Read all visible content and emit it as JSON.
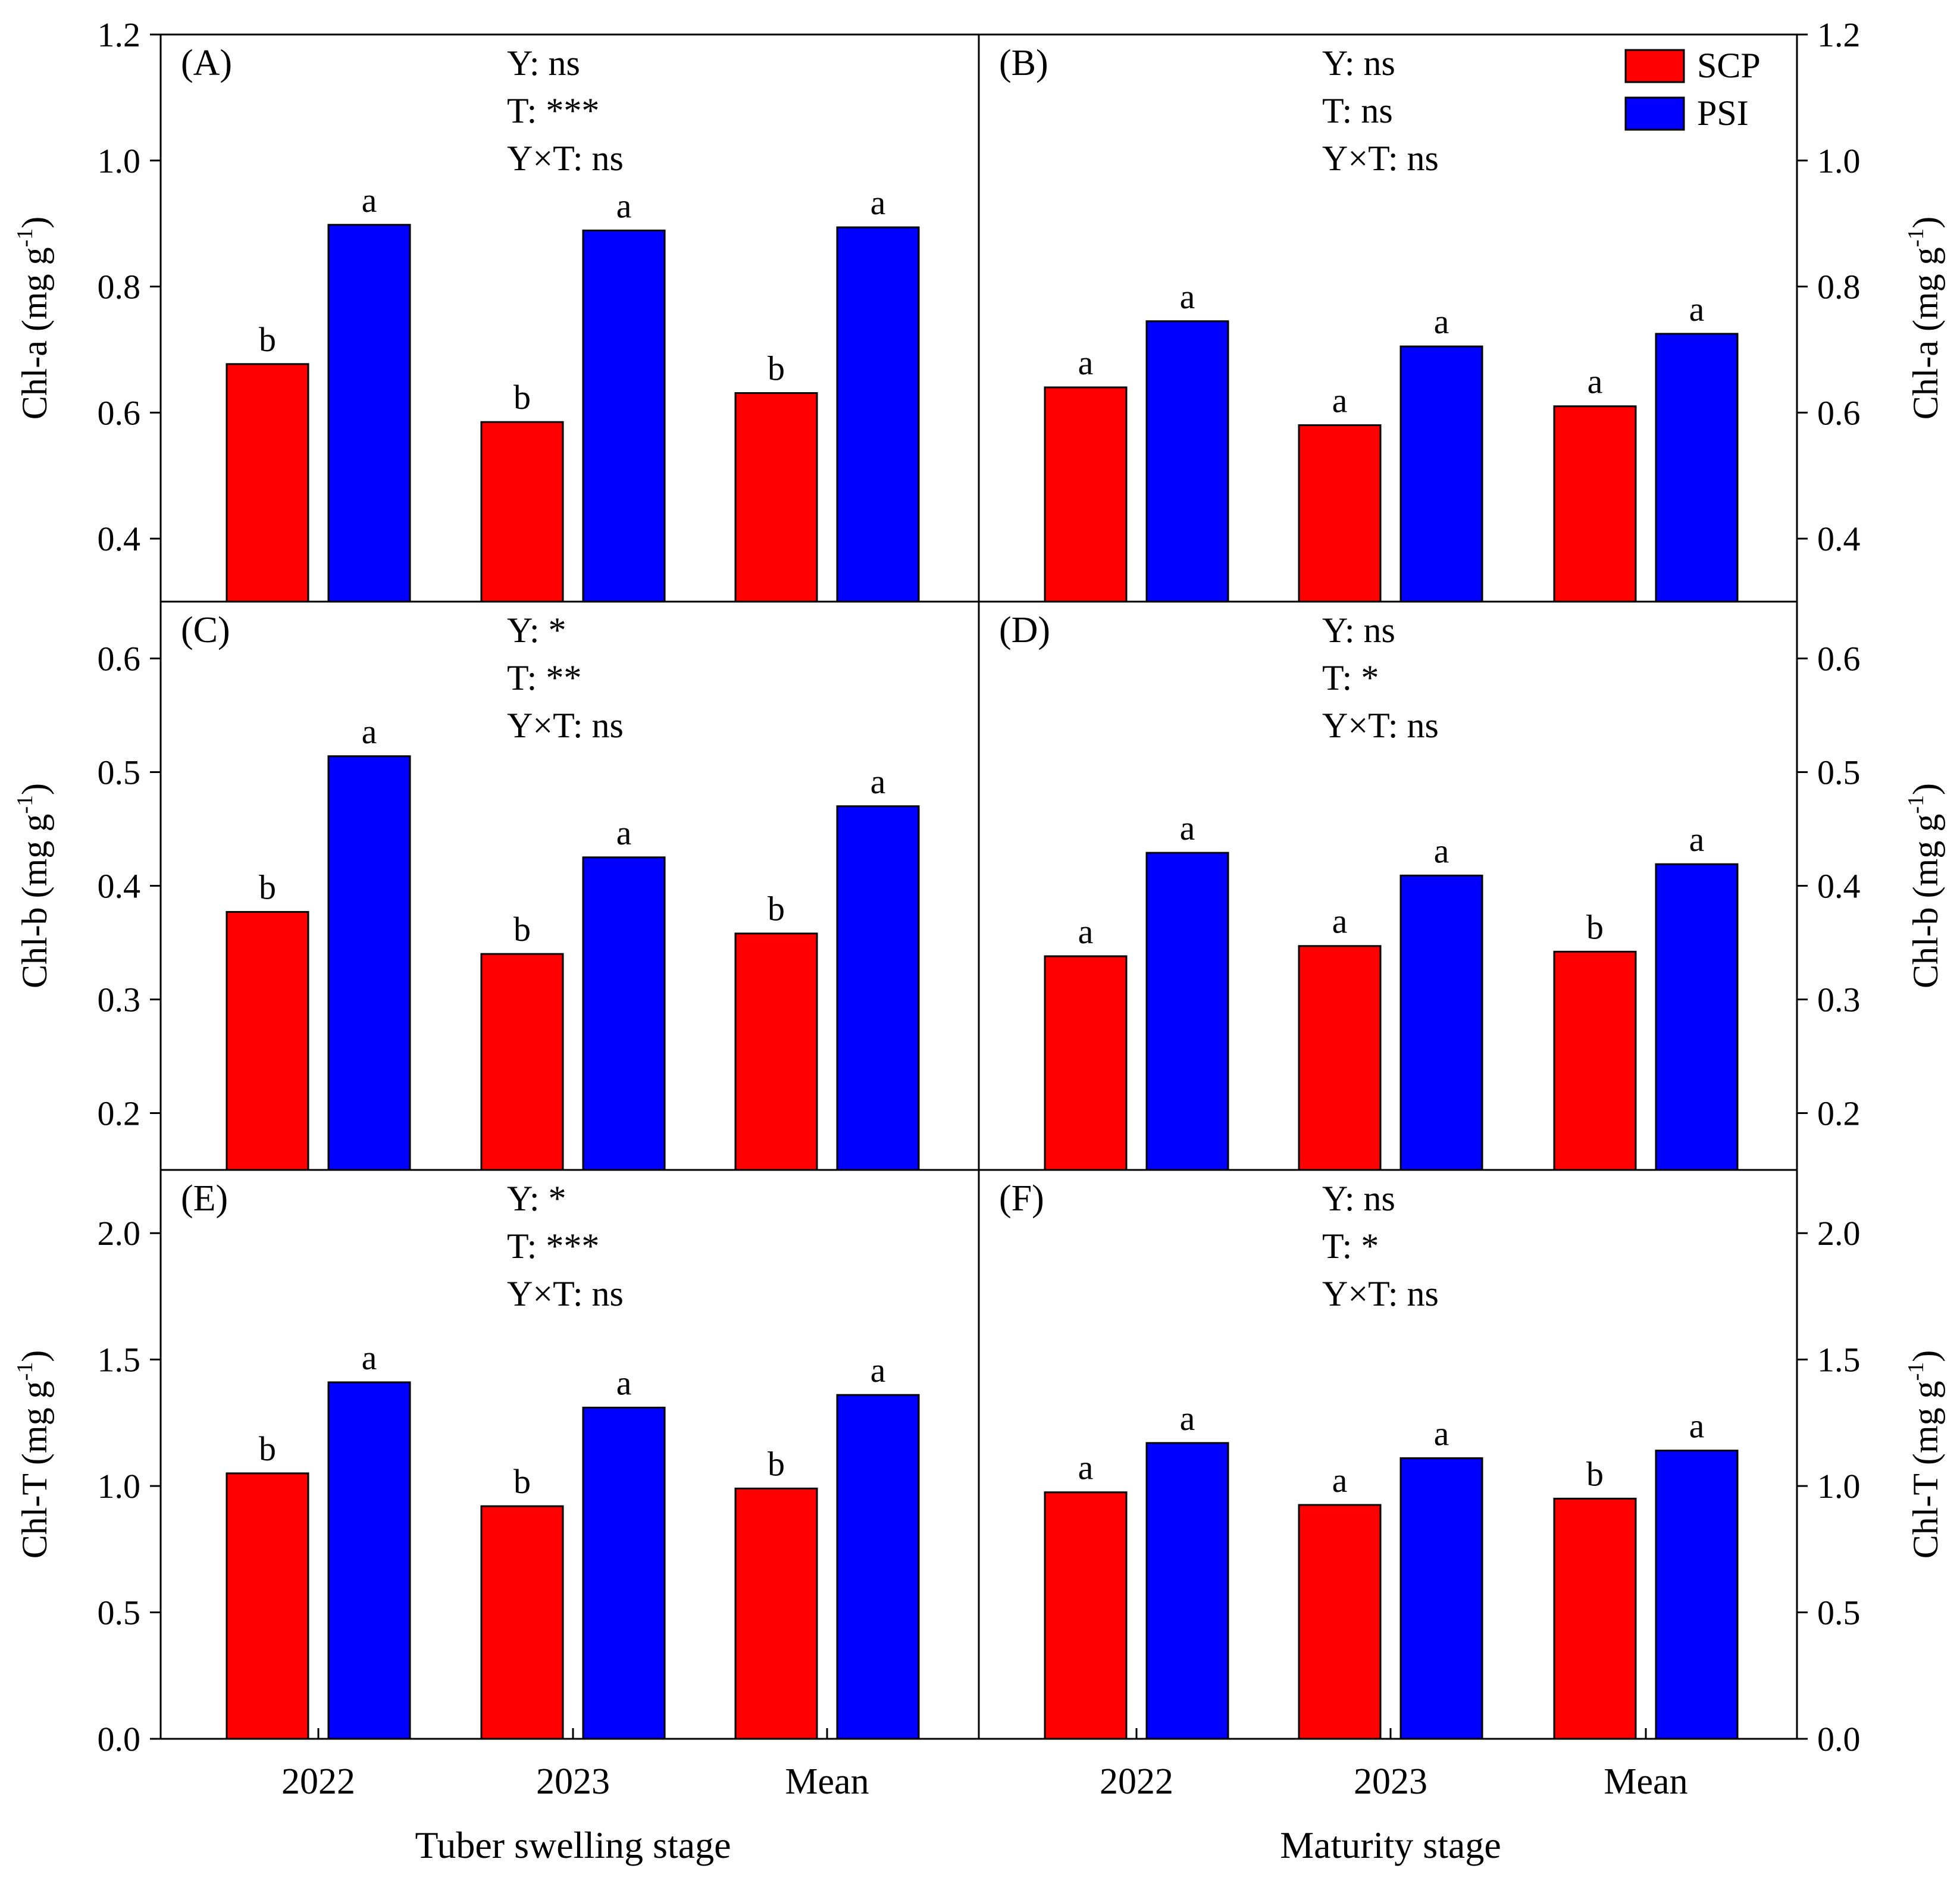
{
  "colors": {
    "scp": "#ff0000",
    "psi": "#0000ff",
    "axis": "#000000"
  },
  "legend": [
    {
      "key": "scp",
      "label": "SCP"
    },
    {
      "key": "psi",
      "label": "PSI"
    }
  ],
  "stages": [
    "Tuber swelling stage",
    "Maturity stage"
  ],
  "categories": [
    "2022",
    "2023",
    "Mean"
  ],
  "rows": [
    {
      "y_title": "Chl-a",
      "unit": "(mg g",
      "sup": "-1",
      "unit_close": ")",
      "ylim": [
        0.3,
        1.2
      ],
      "ticks": [
        0.4,
        0.6,
        0.8,
        1.0,
        1.2
      ],
      "tick_labels": [
        "0.4",
        "0.6",
        "0.8",
        "1.0",
        "1.2"
      ]
    },
    {
      "y_title": "Chl-b",
      "unit": "(mg g",
      "sup": "-1",
      "unit_close": ")",
      "ylim": [
        0.15,
        0.65
      ],
      "ticks": [
        0.2,
        0.3,
        0.4,
        0.5,
        0.6
      ],
      "tick_labels": [
        "0.2",
        "0.3",
        "0.4",
        "0.5",
        "0.6"
      ]
    },
    {
      "y_title": "Chl-T",
      "unit": "(mg g",
      "sup": "-1",
      "unit_close": ")",
      "ylim": [
        0.0,
        2.25
      ],
      "ticks": [
        0.0,
        0.5,
        1.0,
        1.5,
        2.0
      ],
      "tick_labels": [
        "0.0",
        "0.5",
        "1.0",
        "1.5",
        "2.0"
      ]
    }
  ],
  "chart_data": [
    {
      "type": "bar",
      "label": "(A)",
      "stage": "Tuber swelling stage",
      "variable": "Chl-a (mg g-1)",
      "stats": [
        "Y: ns",
        "T: ***",
        "Y×T: ns"
      ],
      "categories": [
        "2022",
        "2023",
        "Mean"
      ],
      "series": [
        {
          "name": "SCP",
          "values": [
            0.677,
            0.585,
            0.631
          ],
          "letters": [
            "b",
            "b",
            "b"
          ]
        },
        {
          "name": "PSI",
          "values": [
            0.898,
            0.889,
            0.894
          ],
          "letters": [
            "a",
            "a",
            "a"
          ]
        }
      ],
      "ylim": [
        0.3,
        1.2
      ]
    },
    {
      "type": "bar",
      "label": "(B)",
      "stage": "Maturity stage",
      "variable": "Chl-a (mg g-1)",
      "stats": [
        "Y: ns",
        "T: ns",
        "Y×T: ns"
      ],
      "categories": [
        "2022",
        "2023",
        "Mean"
      ],
      "series": [
        {
          "name": "SCP",
          "values": [
            0.64,
            0.58,
            0.61
          ],
          "letters": [
            "a",
            "a",
            "a"
          ]
        },
        {
          "name": "PSI",
          "values": [
            0.745,
            0.705,
            0.725
          ],
          "letters": [
            "a",
            "a",
            "a"
          ]
        }
      ],
      "ylim": [
        0.3,
        1.2
      ]
    },
    {
      "type": "bar",
      "label": "(C)",
      "stage": "Tuber swelling stage",
      "variable": "Chl-b (mg g-1)",
      "stats": [
        "Y: *",
        "T: **",
        "Y×T: ns"
      ],
      "categories": [
        "2022",
        "2023",
        "Mean"
      ],
      "series": [
        {
          "name": "SCP",
          "values": [
            0.377,
            0.34,
            0.358
          ],
          "letters": [
            "b",
            "b",
            "b"
          ]
        },
        {
          "name": "PSI",
          "values": [
            0.514,
            0.425,
            0.47
          ],
          "letters": [
            "a",
            "a",
            "a"
          ]
        }
      ],
      "ylim": [
        0.15,
        0.65
      ]
    },
    {
      "type": "bar",
      "label": "(D)",
      "stage": "Maturity stage",
      "variable": "Chl-b (mg g-1)",
      "stats": [
        "Y: ns",
        "T: *",
        "Y×T: ns"
      ],
      "categories": [
        "2022",
        "2023",
        "Mean"
      ],
      "series": [
        {
          "name": "SCP",
          "values": [
            0.338,
            0.347,
            0.342
          ],
          "letters": [
            "a",
            "a",
            "b"
          ]
        },
        {
          "name": "PSI",
          "values": [
            0.429,
            0.409,
            0.419
          ],
          "letters": [
            "a",
            "a",
            "a"
          ]
        }
      ],
      "ylim": [
        0.15,
        0.65
      ]
    },
    {
      "type": "bar",
      "label": "(E)",
      "stage": "Tuber swelling stage",
      "variable": "Chl-T (mg g-1)",
      "stats": [
        "Y: *",
        "T: ***",
        "Y×T: ns"
      ],
      "categories": [
        "2022",
        "2023",
        "Mean"
      ],
      "series": [
        {
          "name": "SCP",
          "values": [
            1.05,
            0.92,
            0.99
          ],
          "letters": [
            "b",
            "b",
            "b"
          ]
        },
        {
          "name": "PSI",
          "values": [
            1.41,
            1.31,
            1.36
          ],
          "letters": [
            "a",
            "a",
            "a"
          ]
        }
      ],
      "ylim": [
        0.0,
        2.25
      ]
    },
    {
      "type": "bar",
      "label": "(F)",
      "stage": "Maturity stage",
      "variable": "Chl-T (mg g-1)",
      "stats": [
        "Y: ns",
        "T: *",
        "Y×T: ns"
      ],
      "categories": [
        "2022",
        "2023",
        "Mean"
      ],
      "series": [
        {
          "name": "SCP",
          "values": [
            0.975,
            0.925,
            0.95
          ],
          "letters": [
            "a",
            "a",
            "b"
          ]
        },
        {
          "name": "PSI",
          "values": [
            1.17,
            1.11,
            1.14
          ],
          "letters": [
            "a",
            "a",
            "a"
          ]
        }
      ],
      "ylim": [
        0.0,
        2.25
      ]
    }
  ]
}
